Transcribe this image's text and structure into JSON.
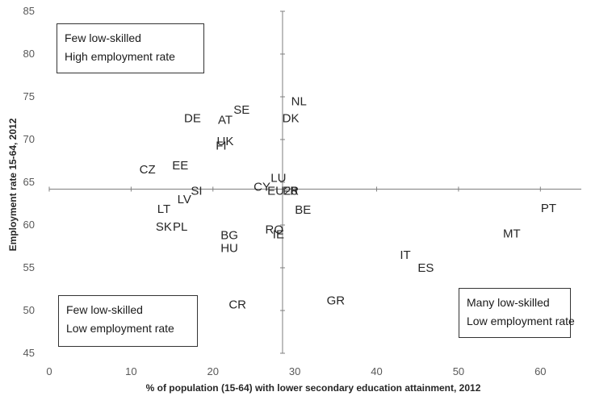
{
  "chart_data": {
    "type": "scatter",
    "xlabel": "% of population (15-64) with lower secondary education attainment, 2012",
    "ylabel": "Employment rate 15-64, 2012",
    "xlim": [
      0,
      65
    ],
    "ylim": [
      45,
      85
    ],
    "x_ticks": [
      0,
      10,
      20,
      30,
      40,
      50,
      60
    ],
    "y_ticks": [
      45,
      50,
      55,
      60,
      65,
      70,
      75,
      80,
      85
    ],
    "crosshair": {
      "x": 28.5,
      "y": 64.2
    },
    "points": [
      {
        "label": "NL",
        "x": 30.5,
        "y": 74.5
      },
      {
        "label": "SE",
        "x": 23.5,
        "y": 73.5
      },
      {
        "label": "DE",
        "x": 17.5,
        "y": 72.5
      },
      {
        "label": "AT",
        "x": 21.5,
        "y": 72.3
      },
      {
        "label": "DK",
        "x": 29.5,
        "y": 72.5
      },
      {
        "label": "UK",
        "x": 21.5,
        "y": 69.8
      },
      {
        "label": "FI",
        "x": 21.0,
        "y": 69.3
      },
      {
        "label": "CZ",
        "x": 12.0,
        "y": 66.5
      },
      {
        "label": "EE",
        "x": 16.0,
        "y": 67.0
      },
      {
        "label": "LU",
        "x": 28.0,
        "y": 65.5
      },
      {
        "label": "CY",
        "x": 26.0,
        "y": 64.5
      },
      {
        "label": "EU28",
        "x": 28.5,
        "y": 64.0
      },
      {
        "label": "FR",
        "x": 29.5,
        "y": 64.0
      },
      {
        "label": "SI",
        "x": 18.0,
        "y": 64.0
      },
      {
        "label": "LV",
        "x": 16.5,
        "y": 63.0
      },
      {
        "label": "LT",
        "x": 14.0,
        "y": 61.9
      },
      {
        "label": "BE",
        "x": 31.0,
        "y": 61.8
      },
      {
        "label": "SK",
        "x": 14.0,
        "y": 59.8
      },
      {
        "label": "PL",
        "x": 16.0,
        "y": 59.8
      },
      {
        "label": "RO",
        "x": 27.5,
        "y": 59.5
      },
      {
        "label": "IE",
        "x": 28.0,
        "y": 58.9
      },
      {
        "label": "BG",
        "x": 22.0,
        "y": 58.8
      },
      {
        "label": "HU",
        "x": 22.0,
        "y": 57.3
      },
      {
        "label": "PT",
        "x": 61.0,
        "y": 62.0
      },
      {
        "label": "MT",
        "x": 56.5,
        "y": 59.0
      },
      {
        "label": "IT",
        "x": 43.5,
        "y": 56.5
      },
      {
        "label": "ES",
        "x": 46.0,
        "y": 55.0
      },
      {
        "label": "GR",
        "x": 35.0,
        "y": 51.2
      },
      {
        "label": "CR",
        "x": 23.0,
        "y": 50.7
      }
    ],
    "annotations": [
      {
        "id": "top-left",
        "lines": [
          "Few low-skilled",
          "High employment rate"
        ]
      },
      {
        "id": "bottom-left",
        "lines": [
          "Few low-skilled",
          "Low employment rate"
        ]
      },
      {
        "id": "bottom-right",
        "lines": [
          "Many low-skilled",
          "Low employment rate"
        ]
      }
    ]
  }
}
